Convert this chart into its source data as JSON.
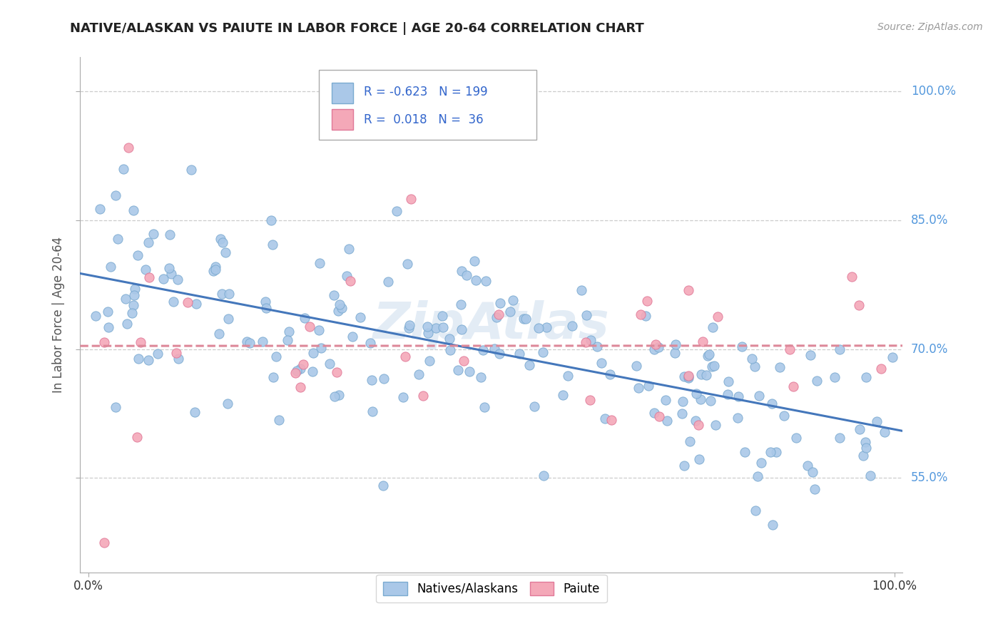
{
  "title": "NATIVE/ALASKAN VS PAIUTE IN LABOR FORCE | AGE 20-64 CORRELATION CHART",
  "source_text": "Source: ZipAtlas.com",
  "ylabel": "In Labor Force | Age 20-64",
  "xlim": [
    -0.01,
    1.01
  ],
  "ylim": [
    0.44,
    1.04
  ],
  "ytick_labels": [
    "55.0%",
    "70.0%",
    "85.0%",
    "100.0%"
  ],
  "ytick_values": [
    0.55,
    0.7,
    0.85,
    1.0
  ],
  "xtick_labels": [
    "0.0%",
    "100.0%"
  ],
  "xtick_values": [
    0.0,
    1.0
  ],
  "grid_color": "#cccccc",
  "background_color": "#ffffff",
  "blue_color": "#aac8e8",
  "pink_color": "#f4a8b8",
  "blue_edge_color": "#7aaad0",
  "pink_edge_color": "#e07898",
  "blue_line_color": "#4477bb",
  "pink_line_color": "#dd8899",
  "legend_blue_R": "-0.623",
  "legend_blue_N": "199",
  "legend_pink_R": "0.018",
  "legend_pink_N": "36",
  "watermark": "ZipAtlas",
  "ytick_color": "#5599dd",
  "title_color": "#222222",
  "source_color": "#999999"
}
